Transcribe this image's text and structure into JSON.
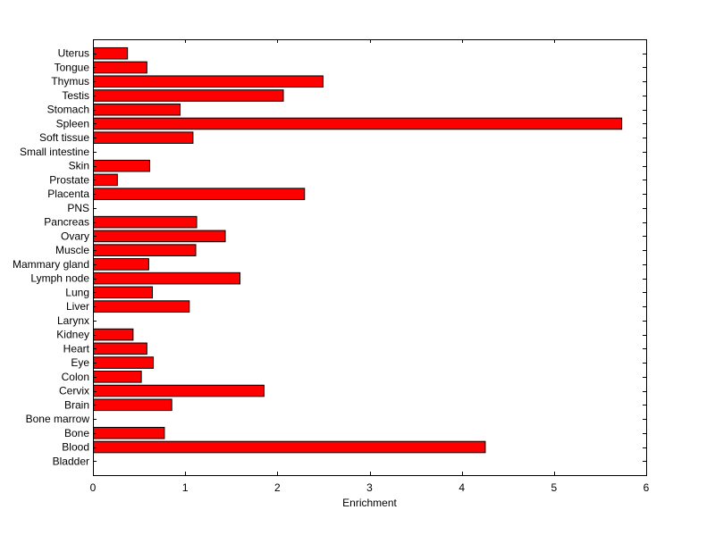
{
  "chart_data": {
    "type": "bar",
    "orientation": "horizontal",
    "title": "",
    "xlabel": "Enrichment",
    "ylabel": "",
    "xlim": [
      0,
      6
    ],
    "x_ticks": [
      0,
      1,
      2,
      3,
      4,
      5,
      6
    ],
    "grid": false,
    "bar_color": "#ff0000",
    "bar_edge_color": "#000000",
    "categories": [
      "Bladder",
      "Blood",
      "Bone",
      "Bone marrow",
      "Brain",
      "Cervix",
      "Colon",
      "Eye",
      "Heart",
      "Kidney",
      "Larynx",
      "Liver",
      "Lung",
      "Lymph node",
      "Mammary gland",
      "Muscle",
      "Ovary",
      "Pancreas",
      "PNS",
      "Placenta",
      "Prostate",
      "Skin",
      "Small intestine",
      "Soft tissue",
      "Spleen",
      "Stomach",
      "Testis",
      "Thymus",
      "Tongue",
      "Uterus"
    ],
    "values": [
      0,
      4.25,
      0.77,
      0,
      0.85,
      1.85,
      0.52,
      0.65,
      0.58,
      0.43,
      0,
      1.04,
      0.64,
      1.59,
      0.6,
      1.11,
      1.43,
      1.12,
      0,
      2.29,
      0.26,
      0.61,
      0,
      1.08,
      5.73,
      0.94,
      2.06,
      2.49,
      0.58,
      0.37
    ]
  }
}
